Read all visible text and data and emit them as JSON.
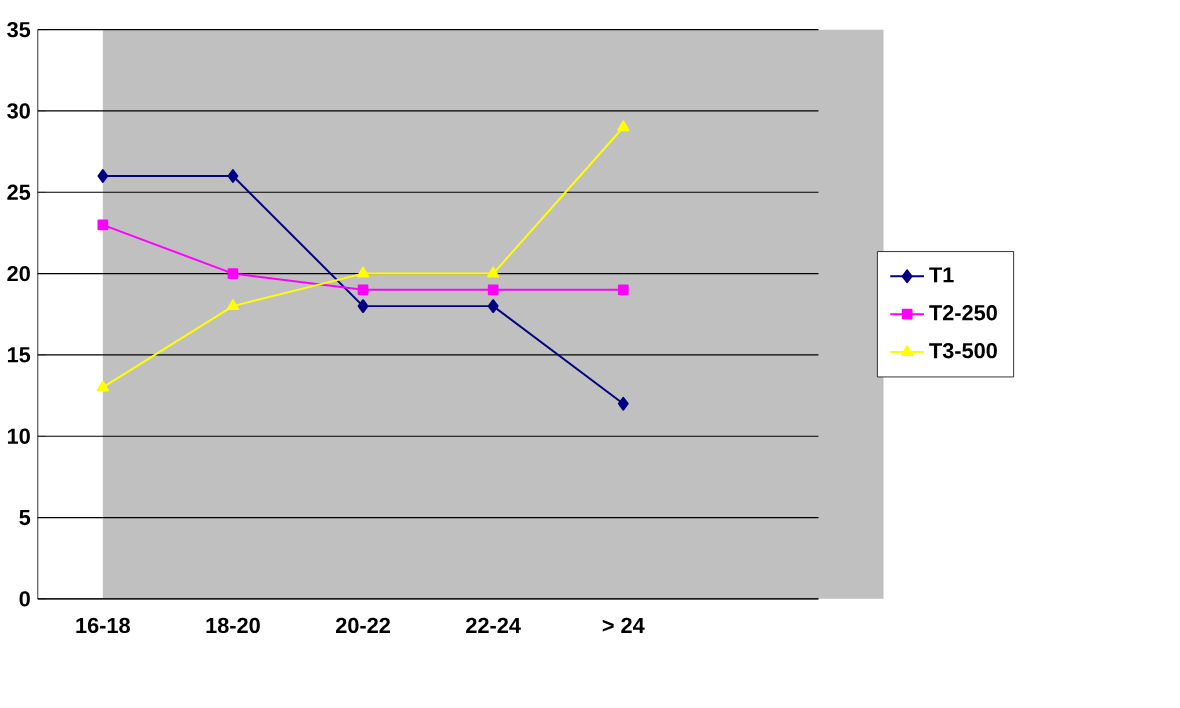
{
  "chart_data": {
    "type": "line",
    "categories": [
      "16-18",
      "18-20",
      "20-22",
      "22-24",
      "> 24",
      null
    ],
    "series": [
      {
        "name": "T1",
        "color": "#000080",
        "marker": "diamond",
        "values": [
          26,
          26,
          18,
          18,
          12,
          null
        ]
      },
      {
        "name": "T2-250",
        "color": "#ff00ff",
        "marker": "square",
        "values": [
          23,
          20,
          19,
          19,
          19,
          null
        ]
      },
      {
        "name": "T3-500",
        "color": "#ffff00",
        "marker": "triangle",
        "values": [
          13,
          18,
          20,
          20,
          29,
          null
        ]
      }
    ],
    "ylim": [
      0,
      35
    ],
    "yticks": [
      0,
      5,
      10,
      15,
      20,
      25,
      30,
      35
    ],
    "grid": "y",
    "legend": "right"
  }
}
